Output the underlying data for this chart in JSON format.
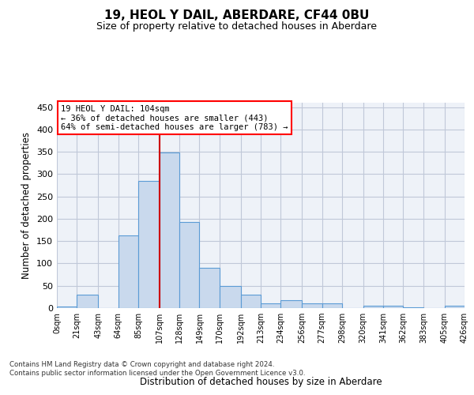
{
  "title": "19, HEOL Y DAIL, ABERDARE, CF44 0BU",
  "subtitle": "Size of property relative to detached houses in Aberdare",
  "xlabel": "Distribution of detached houses by size in Aberdare",
  "ylabel": "Number of detached properties",
  "bar_color": "#c9d9ed",
  "bar_edge_color": "#5b9bd5",
  "grid_color": "#c0c8d8",
  "bg_color": "#eef2f8",
  "marker_line_color": "#cc0000",
  "annotation_lines": [
    "19 HEOL Y DAIL: 104sqm",
    "← 36% of detached houses are smaller (443)",
    "64% of semi-detached houses are larger (783) →"
  ],
  "bin_edges": [
    0,
    21,
    43,
    64,
    85,
    107,
    128,
    149,
    170,
    192,
    213,
    234,
    256,
    277,
    298,
    320,
    341,
    362,
    383,
    405,
    426
  ],
  "bar_heights": [
    3,
    30,
    0,
    163,
    285,
    348,
    192,
    90,
    50,
    30,
    10,
    17,
    10,
    10,
    0,
    5,
    5,
    2,
    0,
    5
  ],
  "ylim": [
    0,
    460
  ],
  "yticks": [
    0,
    50,
    100,
    150,
    200,
    250,
    300,
    350,
    400,
    450
  ],
  "footnote": "Contains HM Land Registry data © Crown copyright and database right 2024.\nContains public sector information licensed under the Open Government Licence v3.0."
}
